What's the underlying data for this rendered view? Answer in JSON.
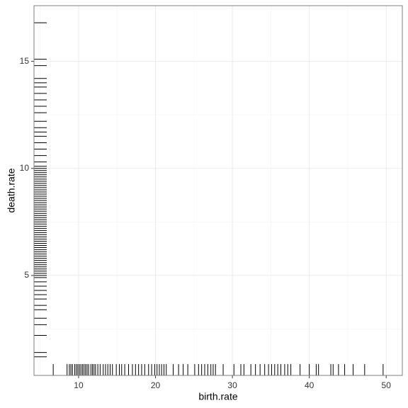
{
  "chart_data": {
    "type": "rug",
    "xlabel": "birth.rate",
    "ylabel": "death.rate",
    "x": [
      6.7,
      8.5,
      8.8,
      9.0,
      9.2,
      9.5,
      9.7,
      9.9,
      10.1,
      10.3,
      10.5,
      10.7,
      10.9,
      11.1,
      11.3,
      11.6,
      11.8,
      12.0,
      12.2,
      12.5,
      12.8,
      13.2,
      13.5,
      13.8,
      14.1,
      14.4,
      14.9,
      15.3,
      15.6,
      16.0,
      16.5,
      17.0,
      17.4,
      17.8,
      18.2,
      18.6,
      19.1,
      19.5,
      19.9,
      20.2,
      20.5,
      20.8,
      21.1,
      21.4,
      22.3,
      23.0,
      23.6,
      24.2,
      25.1,
      25.6,
      26.0,
      26.4,
      26.8,
      27.2,
      27.5,
      27.8,
      28.8,
      30.2,
      31.1,
      31.5,
      32.4,
      33.0,
      33.6,
      34.2,
      34.7,
      35.1,
      35.5,
      35.9,
      36.3,
      36.8,
      37.2,
      37.6,
      38.8,
      40.0,
      40.9,
      41.2,
      42.8,
      43.1,
      43.8,
      44.6,
      45.7,
      47.2,
      49.6
    ],
    "y": [
      1.2,
      1.4,
      2.2,
      2.7,
      3.0,
      3.4,
      3.6,
      3.9,
      4.1,
      4.3,
      4.5,
      4.7,
      4.9,
      5.0,
      5.1,
      5.2,
      5.3,
      5.4,
      5.5,
      5.6,
      5.7,
      5.8,
      5.9,
      6.0,
      6.1,
      6.2,
      6.3,
      6.4,
      6.5,
      6.6,
      6.7,
      6.8,
      6.9,
      7.0,
      7.1,
      7.2,
      7.3,
      7.4,
      7.5,
      7.6,
      7.7,
      7.8,
      7.9,
      8.0,
      8.1,
      8.2,
      8.3,
      8.4,
      8.5,
      8.6,
      8.7,
      8.8,
      8.9,
      9.0,
      9.1,
      9.2,
      9.3,
      9.4,
      9.5,
      9.6,
      9.7,
      9.8,
      9.9,
      10.0,
      10.1,
      10.3,
      10.6,
      10.9,
      11.2,
      11.5,
      11.7,
      11.9,
      12.2,
      12.6,
      12.9,
      13.2,
      13.5,
      13.8,
      14.0,
      14.2,
      14.8,
      15.1,
      16.8
    ],
    "color": "#000000",
    "xlim": [
      4.2,
      52.1
    ],
    "xticks": [
      10,
      20,
      30,
      40,
      50
    ],
    "ylim": [
      0.33,
      17.6
    ],
    "yticks": [
      5,
      10,
      15
    ],
    "grid": true
  }
}
